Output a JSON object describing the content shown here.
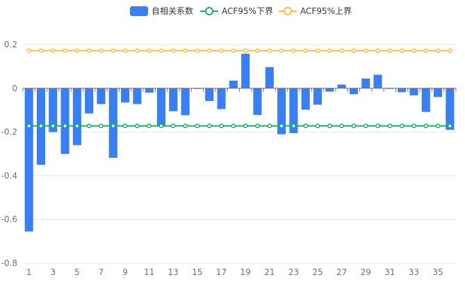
{
  "chart_data": {
    "type": "bar",
    "title": "",
    "xlabel": "",
    "ylabel": "",
    "ylim": [
      -0.8,
      0.2
    ],
    "yticks": [
      0.2,
      0,
      -0.2,
      -0.4,
      -0.6,
      -0.8
    ],
    "ytick_labels": [
      "0.2",
      "0",
      "-0.2",
      "-0.4",
      "-0.6",
      "-0.8"
    ],
    "x": [
      1,
      2,
      3,
      4,
      5,
      6,
      7,
      8,
      9,
      10,
      11,
      12,
      13,
      14,
      15,
      16,
      17,
      18,
      19,
      20,
      21,
      22,
      23,
      24,
      25,
      26,
      27,
      28,
      29,
      30,
      31,
      32,
      33,
      34,
      35,
      36
    ],
    "xtick_labels": [
      "1",
      "3",
      "5",
      "7",
      "9",
      "11",
      "13",
      "15",
      "17",
      "19",
      "21",
      "23",
      "25",
      "27",
      "29",
      "31",
      "33",
      "35"
    ],
    "grid": true,
    "legend_position": "top-center",
    "legend": [
      {
        "key": "acf",
        "label": "自相关系数",
        "color": "#3a7ef5",
        "symbol": "bar"
      },
      {
        "key": "lower",
        "label": "ACF95%下界",
        "color": "#17b26a",
        "symbol": "line-circle"
      },
      {
        "key": "upper",
        "label": "ACF95%上界",
        "color": "#f5c342",
        "symbol": "line-circle"
      }
    ],
    "series": [
      {
        "name": "自相关系数",
        "type": "bar",
        "color": "#3a7ef5",
        "values": [
          -0.655,
          -0.35,
          -0.2,
          -0.3,
          -0.26,
          -0.115,
          -0.072,
          -0.318,
          -0.065,
          -0.072,
          -0.02,
          -0.175,
          -0.105,
          -0.123,
          -0.003,
          -0.058,
          -0.095,
          0.035,
          0.158,
          -0.122,
          0.097,
          -0.21,
          -0.205,
          -0.098,
          -0.075,
          -0.015,
          0.017,
          -0.027,
          0.045,
          0.062,
          -0.003,
          -0.018,
          -0.032,
          -0.108,
          -0.04,
          -0.19
        ]
      },
      {
        "name": "ACF95%下界",
        "type": "line",
        "color": "#17b26a",
        "values": [
          -0.172,
          -0.172,
          -0.172,
          -0.172,
          -0.172,
          -0.172,
          -0.172,
          -0.172,
          -0.172,
          -0.172,
          -0.172,
          -0.172,
          -0.172,
          -0.172,
          -0.172,
          -0.172,
          -0.172,
          -0.172,
          -0.172,
          -0.172,
          -0.172,
          -0.172,
          -0.172,
          -0.172,
          -0.172,
          -0.172,
          -0.172,
          -0.172,
          -0.172,
          -0.172,
          -0.172,
          -0.172,
          -0.172,
          -0.172,
          -0.172,
          -0.172
        ]
      },
      {
        "name": "ACF95%上界",
        "type": "line",
        "color": "#f5c342",
        "values": [
          0.172,
          0.172,
          0.172,
          0.172,
          0.172,
          0.172,
          0.172,
          0.172,
          0.172,
          0.172,
          0.172,
          0.172,
          0.172,
          0.172,
          0.172,
          0.172,
          0.172,
          0.172,
          0.172,
          0.172,
          0.172,
          0.172,
          0.172,
          0.172,
          0.172,
          0.172,
          0.172,
          0.172,
          0.172,
          0.172,
          0.172,
          0.172,
          0.172,
          0.172,
          0.172,
          0.172
        ]
      }
    ]
  }
}
